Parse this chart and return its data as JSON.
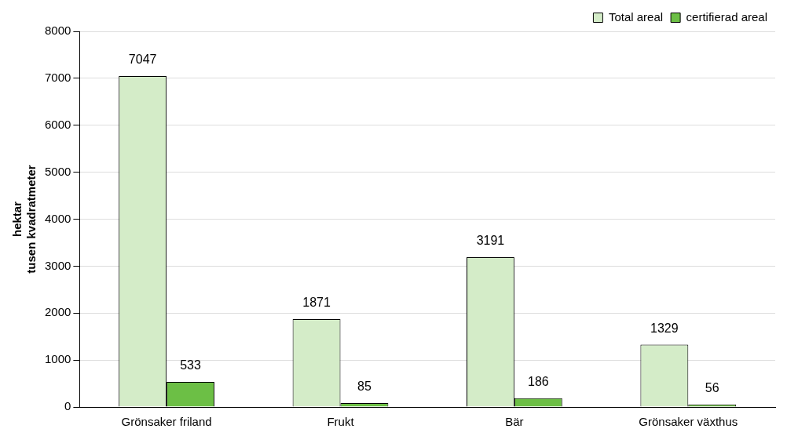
{
  "chart_data": {
    "type": "bar",
    "ylabel": "hektar\ntusen kvadratmeter",
    "categories": [
      "Grönsaker friland",
      "Frukt",
      "Bär",
      "Grönsaker växthus"
    ],
    "series": [
      {
        "name": "Total areal",
        "color": "#d4ecc8",
        "values": [
          7047,
          1871,
          3191,
          1329
        ]
      },
      {
        "name": "certifierad areal",
        "color": "#6cbf45",
        "values": [
          533,
          85,
          186,
          56
        ]
      }
    ],
    "ylim": [
      0,
      8000
    ],
    "yticks": [
      0,
      1000,
      2000,
      3000,
      4000,
      5000,
      6000,
      7000,
      8000
    ],
    "grid": "y",
    "legend": "top right",
    "data_labels": true
  }
}
